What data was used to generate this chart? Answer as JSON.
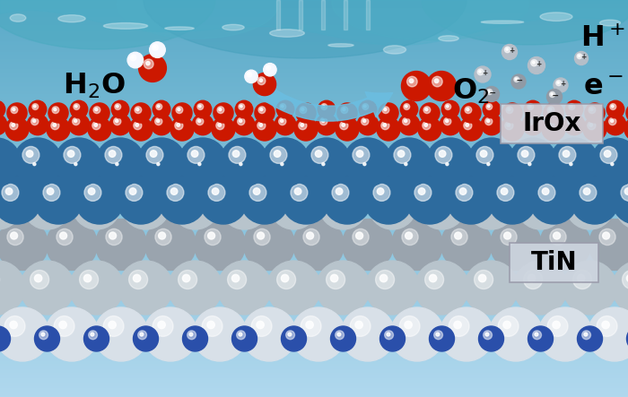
{
  "figsize": [
    7.0,
    4.43
  ],
  "dpi": 100,
  "IrOx_label": "IrOx",
  "TiN_label": "TiN",
  "arrow_color": "#6bbde0",
  "label_box_color": "#cdd5df",
  "label_box_edge": "#999aaa",
  "irox_blue_dark": "#1e4f78",
  "irox_blue_mid": "#2d6b9e",
  "irox_blue_light": "#4a90c8",
  "irox_red": "#cc1800",
  "tin_gray_dark": "#9aa4ae",
  "tin_gray_mid": "#b8c4cc",
  "tin_gray_light": "#d8e0e8",
  "tin_blue_N": "#2a4faa",
  "water_white": "#f5f8ff",
  "hplus_gray": "#b5bec8",
  "bg_color_top": "#b0d8ee",
  "bg_color_bot": "#5aaac8"
}
